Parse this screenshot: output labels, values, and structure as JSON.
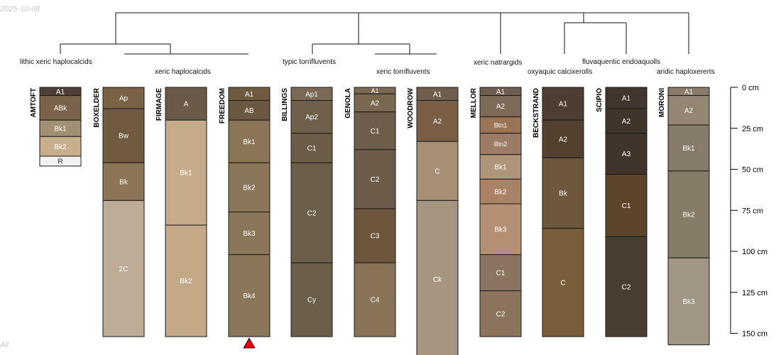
{
  "watermark": {
    "date": "2025-10-08",
    "bottom_text": "All"
  },
  "taxa": [
    {
      "id": "t1",
      "label": "lithic xeric haplocalcids"
    },
    {
      "id": "t2",
      "label": "xeric haplocalcids"
    },
    {
      "id": "t3",
      "label": "typic torrifluvents"
    },
    {
      "id": "t4",
      "label": "xeric torrifluvents"
    },
    {
      "id": "t5",
      "label": "xeric natrargids"
    },
    {
      "id": "t6",
      "label": "oxyaquic calcixerolls"
    },
    {
      "id": "t7",
      "label": "fluvaquentic endoaquolls"
    },
    {
      "id": "t8",
      "label": "aridic haploxererts"
    }
  ],
  "depth_axis": {
    "unit": "cm",
    "ticks": [
      {
        "depth": 0,
        "label": "0 cm"
      },
      {
        "depth": 25,
        "label": "25 cm"
      },
      {
        "depth": 50,
        "label": "50 cm"
      },
      {
        "depth": 75,
        "label": "75 cm"
      },
      {
        "depth": 100,
        "label": "100 cm"
      },
      {
        "depth": 125,
        "label": "125 cm"
      },
      {
        "depth": 150,
        "label": "150 cm"
      }
    ]
  },
  "profiles": [
    {
      "name": "AMTOFT",
      "horizons": [
        {
          "name": "A1",
          "top": 0,
          "bottom": 5,
          "color": "#4f4035"
        },
        {
          "name": "ABk",
          "top": 5,
          "bottom": 20,
          "color": "#7a634a"
        },
        {
          "name": "Bk1",
          "top": 20,
          "bottom": 30,
          "color": "#a38f73"
        },
        {
          "name": "Bk2",
          "top": 30,
          "bottom": 42,
          "color": "#c9ae8c"
        },
        {
          "name": "R",
          "top": 42,
          "bottom": 48,
          "color": "#f2f2f2"
        }
      ]
    },
    {
      "name": "BOXELDER",
      "horizons": [
        {
          "name": "Ap",
          "top": 0,
          "bottom": 13,
          "color": "#7a6247"
        },
        {
          "name": "Bw",
          "top": 13,
          "bottom": 46,
          "color": "#705a40"
        },
        {
          "name": "Bk",
          "top": 46,
          "bottom": 69,
          "color": "#8c7456"
        },
        {
          "name": "2C",
          "top": 69,
          "bottom": 152,
          "color": "#bfac96"
        }
      ]
    },
    {
      "name": "FIRMAGE",
      "horizons": [
        {
          "name": "A",
          "top": 0,
          "bottom": 20,
          "color": "#6b5a4a"
        },
        {
          "name": "Bk1",
          "top": 20,
          "bottom": 84,
          "color": "#c6ab8b"
        },
        {
          "name": "Bk2",
          "top": 84,
          "bottom": 152,
          "color": "#c4a987"
        }
      ]
    },
    {
      "name": "FREEDOM",
      "horizons": [
        {
          "name": "A1",
          "top": 0,
          "bottom": 8,
          "color": "#705b40"
        },
        {
          "name": "AB",
          "top": 8,
          "bottom": 20,
          "color": "#6b5840"
        },
        {
          "name": "Bk1",
          "top": 20,
          "bottom": 46,
          "color": "#8a7556"
        },
        {
          "name": "Bk2",
          "top": 46,
          "bottom": 76,
          "color": "#8a7658"
        },
        {
          "name": "Bk3",
          "top": 76,
          "bottom": 102,
          "color": "#8a7658"
        },
        {
          "name": "Bk4",
          "top": 102,
          "bottom": 152,
          "color": "#8a7658"
        }
      ]
    },
    {
      "name": "BILLINGS",
      "horizons": [
        {
          "name": "Ap1",
          "top": 0,
          "bottom": 8,
          "color": "#7a6a55"
        },
        {
          "name": "Ap2",
          "top": 8,
          "bottom": 28,
          "color": "#6f604b"
        },
        {
          "name": "C1",
          "top": 28,
          "bottom": 46,
          "color": "#6c5d48"
        },
        {
          "name": "C2",
          "top": 46,
          "bottom": 107,
          "color": "#6b5e4b"
        },
        {
          "name": "Cy",
          "top": 107,
          "bottom": 152,
          "color": "#6b5e4b"
        }
      ]
    },
    {
      "name": "GENOLA",
      "horizons": [
        {
          "name": "A1",
          "top": 0,
          "bottom": 4,
          "color": "#7b6953"
        },
        {
          "name": "A2",
          "top": 4,
          "bottom": 15,
          "color": "#7a6851"
        },
        {
          "name": "C1",
          "top": 15,
          "bottom": 38,
          "color": "#6e5d4a"
        },
        {
          "name": "C2",
          "top": 38,
          "bottom": 74,
          "color": "#6b5b48"
        },
        {
          "name": "C3",
          "top": 74,
          "bottom": 107,
          "color": "#6e563c"
        },
        {
          "name": "C4",
          "top": 107,
          "bottom": 152,
          "color": "#8a7458"
        }
      ]
    },
    {
      "name": "WOODROW",
      "horizons": [
        {
          "name": "A1",
          "top": 0,
          "bottom": 8,
          "color": "#6f5e4d"
        },
        {
          "name": "A2",
          "top": 8,
          "bottom": 33,
          "color": "#7a5f44"
        },
        {
          "name": "C",
          "top": 33,
          "bottom": 69,
          "color": "#a78f73"
        },
        {
          "name": "Ck",
          "top": 69,
          "bottom": 165,
          "color": "#a5947f"
        }
      ]
    },
    {
      "name": "MELLOR",
      "horizons": [
        {
          "name": "A1",
          "top": 0,
          "bottom": 5,
          "color": "#6d5e4f"
        },
        {
          "name": "A2",
          "top": 5,
          "bottom": 18,
          "color": "#7d6a58"
        },
        {
          "name": "Btn1",
          "top": 18,
          "bottom": 28,
          "color": "#9b7456"
        },
        {
          "name": "Btn2",
          "top": 28,
          "bottom": 41,
          "color": "#9c7c64"
        },
        {
          "name": "Bk1",
          "top": 41,
          "bottom": 56,
          "color": "#ae9479"
        },
        {
          "name": "Bk2",
          "top": 56,
          "bottom": 71,
          "color": "#aa8265"
        },
        {
          "name": "Bk3",
          "top": 71,
          "bottom": 102,
          "color": "#b48f72"
        },
        {
          "name": "C1",
          "top": 102,
          "bottom": 124,
          "color": "#8c7560"
        },
        {
          "name": "C2",
          "top": 124,
          "bottom": 152,
          "color": "#8c735c"
        }
      ]
    },
    {
      "name": "BECKSTRAND",
      "horizons": [
        {
          "name": "A1",
          "top": 0,
          "bottom": 20,
          "color": "#4d3e31"
        },
        {
          "name": "A2",
          "top": 20,
          "bottom": 43,
          "color": "#53412f"
        },
        {
          "name": "Bk",
          "top": 43,
          "bottom": 86,
          "color": "#6f573e"
        },
        {
          "name": "C",
          "top": 86,
          "bottom": 152,
          "color": "#7a5e3c"
        }
      ]
    },
    {
      "name": "SCIPIO",
      "horizons": [
        {
          "name": "A1",
          "top": 0,
          "bottom": 13,
          "color": "#41362d"
        },
        {
          "name": "A2",
          "top": 13,
          "bottom": 28,
          "color": "#40352b"
        },
        {
          "name": "A3",
          "top": 28,
          "bottom": 53,
          "color": "#41352b"
        },
        {
          "name": "C1",
          "top": 53,
          "bottom": 91,
          "color": "#5d4529"
        },
        {
          "name": "C2",
          "top": 91,
          "bottom": 152,
          "color": "#4a3e33"
        }
      ]
    },
    {
      "name": "MORONI",
      "horizons": [
        {
          "name": "A1",
          "top": 0,
          "bottom": 5,
          "color": "#8a7c69"
        },
        {
          "name": "A2",
          "top": 5,
          "bottom": 23,
          "color": "#948672"
        },
        {
          "name": "Bk1",
          "top": 23,
          "bottom": 51,
          "color": "#877c69"
        },
        {
          "name": "Bk2",
          "top": 51,
          "bottom": 104,
          "color": "#877c68"
        },
        {
          "name": "Bk3",
          "top": 104,
          "bottom": 157,
          "color": "#a09683"
        }
      ]
    }
  ],
  "markers": [
    {
      "profile": "FREEDOM",
      "type": "triangle",
      "color": "#e8000b"
    }
  ]
}
